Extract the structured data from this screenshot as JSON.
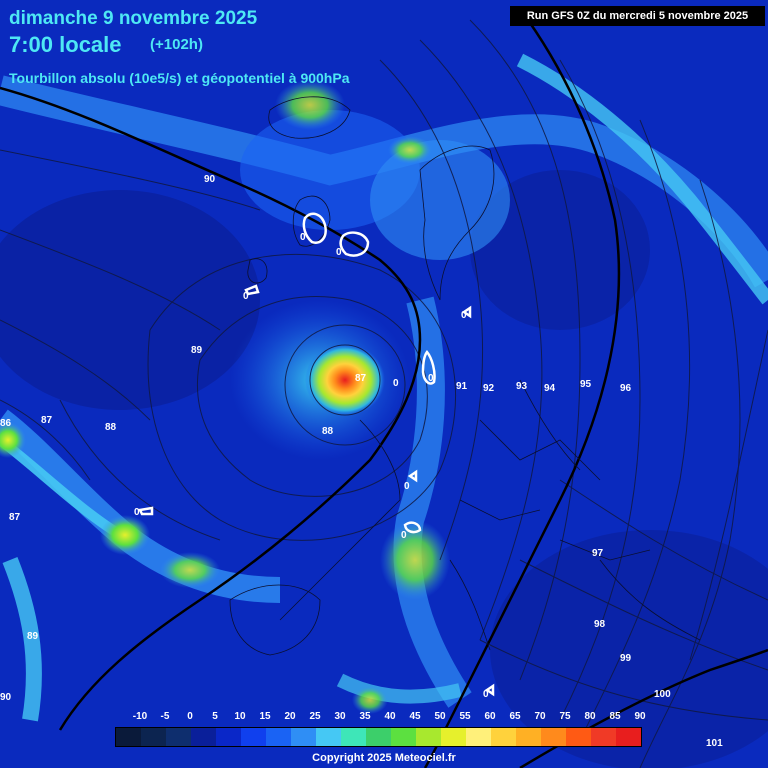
{
  "header": {
    "date_line": "dimanche 9 novembre 2025",
    "time_line": "7:00 locale",
    "lead_time": "(+102h)",
    "description": "Tourbillon absolu (10e5/s) et géopotentiel à 900hPa",
    "run_info": "Run GFS 0Z du mercredi 5 novembre 2025"
  },
  "footer": {
    "copyright": "Copyright 2025 Meteociel.fr"
  },
  "legend": {
    "values": [
      "-10",
      "-5",
      "0",
      "5",
      "10",
      "15",
      "20",
      "25",
      "30",
      "35",
      "40",
      "45",
      "50",
      "55",
      "60",
      "65",
      "70",
      "75",
      "80",
      "85",
      "90"
    ],
    "colors": [
      "#0a1a3a",
      "#0c2450",
      "#0e2e6e",
      "#0a1f9a",
      "#0a27c8",
      "#1040ee",
      "#1a63f4",
      "#2f8ef5",
      "#45c8f4",
      "#3ee6b8",
      "#3ccf6a",
      "#5ce040",
      "#a8e82e",
      "#e6f02c",
      "#fff07a",
      "#ffd23c",
      "#ffb024",
      "#ff8a1c",
      "#ff5a14",
      "#f03a26",
      "#e81e1e"
    ]
  },
  "contour_labels": [
    {
      "text": "90",
      "icon": "contour-label"
    },
    {
      "text": "89",
      "icon": "contour-label"
    },
    {
      "text": "88",
      "icon": "contour-label"
    },
    {
      "text": "87",
      "icon": "contour-label"
    },
    {
      "text": "86",
      "icon": "contour-label"
    },
    {
      "text": "91",
      "icon": "contour-label"
    },
    {
      "text": "92",
      "icon": "contour-label"
    },
    {
      "text": "93",
      "icon": "contour-label"
    },
    {
      "text": "94",
      "icon": "contour-label"
    },
    {
      "text": "95",
      "icon": "contour-label"
    },
    {
      "text": "96",
      "icon": "contour-label"
    },
    {
      "text": "97",
      "icon": "contour-label"
    },
    {
      "text": "98",
      "icon": "contour-label"
    },
    {
      "text": "99",
      "icon": "contour-label"
    },
    {
      "text": "100",
      "icon": "contour-label"
    },
    {
      "text": "101",
      "icon": "contour-label"
    },
    {
      "text": "0",
      "icon": "zero-contour-label"
    }
  ]
}
